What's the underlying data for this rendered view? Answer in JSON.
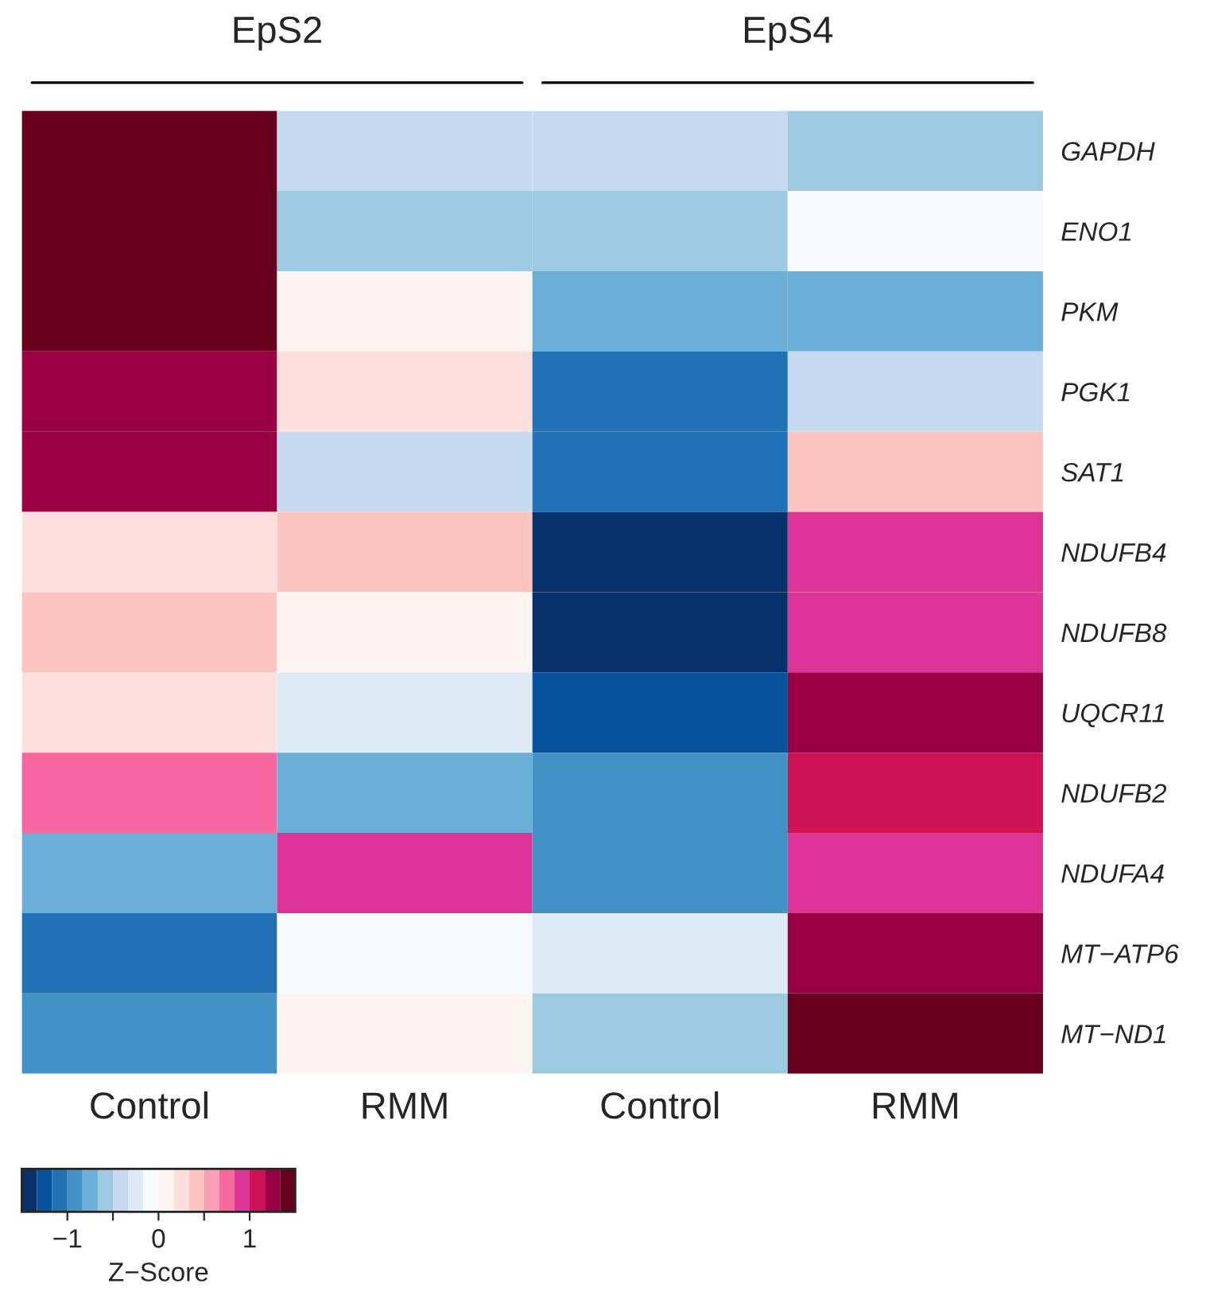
{
  "chart_data": {
    "type": "heatmap",
    "categories": [
      "Control",
      "RMM",
      "Control",
      "RMM"
    ],
    "y_categories": [
      "GAPDH",
      "ENO1",
      "PKM",
      "PGK1",
      "SAT1",
      "NDUFB4",
      "NDUFB8",
      "UQCR11",
      "NDUFB2",
      "NDUFA4",
      "MT−ATP6",
      "MT−ND1"
    ],
    "cells": [
      [
        1.42,
        -0.42,
        -0.42,
        -0.58
      ],
      [
        1.42,
        -0.58,
        -0.58,
        -0.08
      ],
      [
        1.42,
        0.08,
        -0.75,
        -0.75
      ],
      [
        1.25,
        0.25,
        -1.08,
        -0.42
      ],
      [
        1.25,
        -0.42,
        -1.08,
        0.42
      ],
      [
        0.25,
        0.42,
        -1.42,
        0.92
      ],
      [
        0.42,
        0.08,
        -1.42,
        0.92
      ],
      [
        0.25,
        -0.25,
        -1.25,
        1.25
      ],
      [
        0.75,
        -0.75,
        -0.92,
        1.08
      ],
      [
        -0.75,
        0.92,
        -0.92,
        0.92
      ],
      [
        -1.08,
        -0.08,
        -0.25,
        1.25
      ],
      [
        -0.92,
        0.08,
        -0.58,
        1.42
      ]
    ],
    "colors": [
      "#08306b",
      "#08519c",
      "#2171b5",
      "#4292c6",
      "#6baed6",
      "#9ecae1",
      "#c6dbef",
      "#deebf7",
      "#f7fbff",
      "#fff5f0",
      "#fde0dd",
      "#fcc5c0",
      "#fa9fb5",
      "#f768a1",
      "#dd3497",
      "#ce1256",
      "#980043",
      "#67001f"
    ],
    "clim": [
      -1.5,
      1.5
    ],
    "cticks": [
      {
        "value": -1,
        "label": "−1"
      },
      {
        "value": -0.5,
        "label": null
      },
      0,
      {
        "value": 0.5,
        "label": null
      },
      1
    ],
    "clabel": "Z−Score",
    "annotations": [
      "EpS2",
      "EpS4"
    ]
  }
}
